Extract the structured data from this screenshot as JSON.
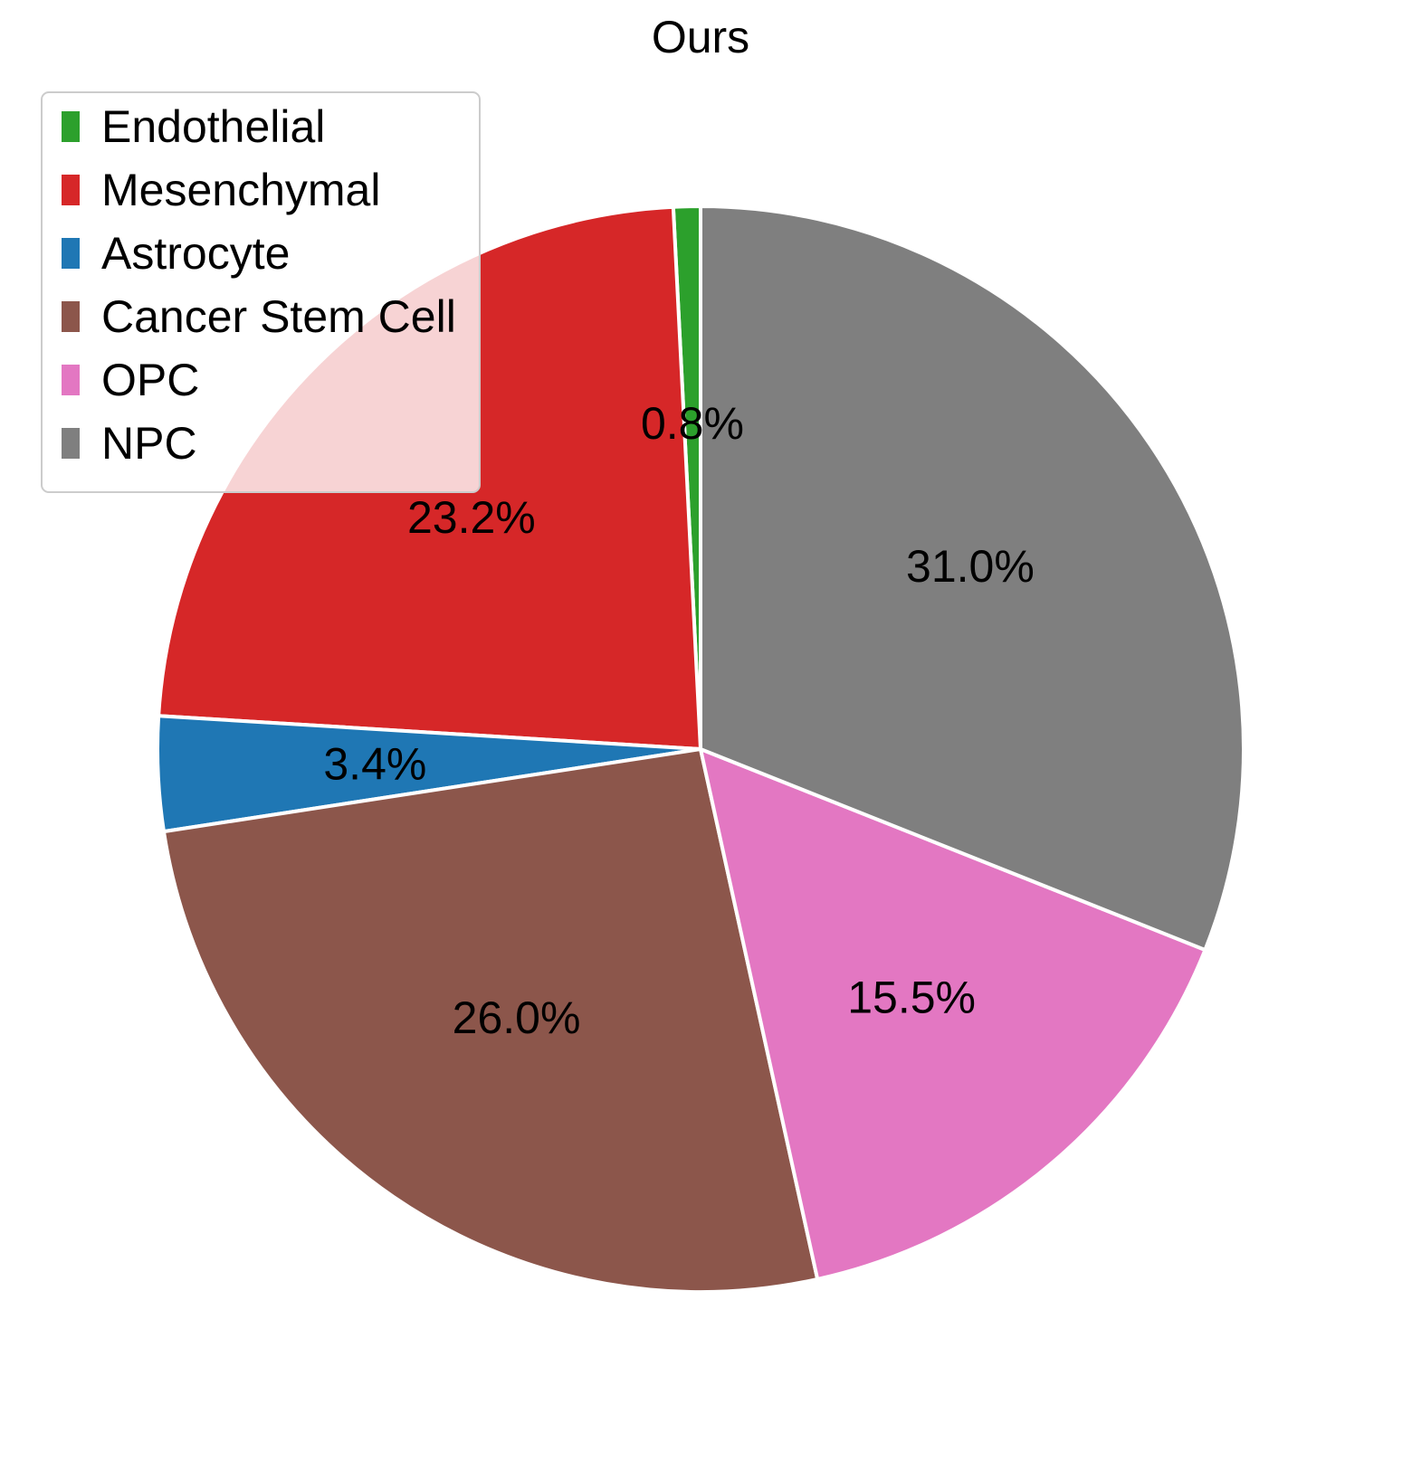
{
  "chart_data": {
    "type": "pie",
    "title": "Ours",
    "startangle_deg": 90,
    "direction": "counterclockwise",
    "legend_position": "upper-left",
    "slices": [
      {
        "label": "Endothelial",
        "value": 0.8,
        "pct_label": "0.8%",
        "color": "#2ca02c"
      },
      {
        "label": "Mesenchymal",
        "value": 23.2,
        "pct_label": "23.2%",
        "color": "#d62728"
      },
      {
        "label": "Astrocyte",
        "value": 3.4,
        "pct_label": "3.4%",
        "color": "#1f77b4"
      },
      {
        "label": "Cancer Stem Cell",
        "value": 26.0,
        "pct_label": "26.0%",
        "color": "#8c564b"
      },
      {
        "label": "OPC",
        "value": 15.5,
        "pct_label": "15.5%",
        "color": "#e377c2"
      },
      {
        "label": "NPC",
        "value": 31.0,
        "pct_label": "31.0%",
        "color": "#7f7f7f"
      }
    ]
  }
}
